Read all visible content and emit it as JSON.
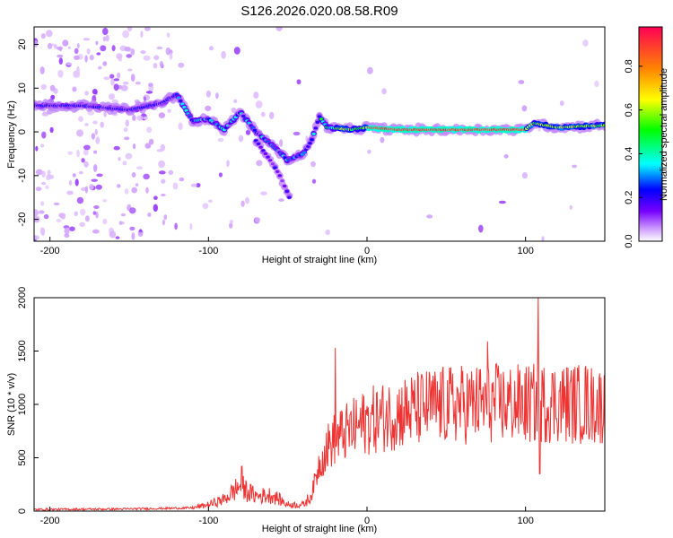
{
  "title": "S126.2026.020.08.58.R09",
  "colors": {
    "snr_line": "#ee3333",
    "axis": "#000000",
    "background": "#ffffff"
  },
  "chart_data": [
    {
      "type": "heatmap",
      "name": "spectrogram",
      "xlabel": "Height of straight line (km)",
      "ylabel": "Frequency (Hz)",
      "xlim": [
        -210,
        150
      ],
      "ylim": [
        -25,
        24
      ],
      "xticks": [
        -200,
        -100,
        0,
        100
      ],
      "yticks": [
        -20,
        -10,
        0,
        10,
        20
      ],
      "colorbar": {
        "label": "Normalized spectral amplitude",
        "range": [
          0,
          0.98
        ],
        "ticks": [
          0.0,
          0.2,
          0.4,
          0.6,
          0.8
        ],
        "colormap": [
          "#ffffff",
          "#cc99ff",
          "#7700ff",
          "#0000ff",
          "#00ffff",
          "#00ff00",
          "#ffff00",
          "#ff8800",
          "#ff0055"
        ]
      },
      "ridge": [
        [
          -210,
          6.0
        ],
        [
          -180,
          6.0
        ],
        [
          -150,
          5.0
        ],
        [
          -130,
          6.5
        ],
        [
          -120,
          8.5
        ],
        [
          -110,
          2.5
        ],
        [
          -100,
          3.0
        ],
        [
          -90,
          0.5
        ],
        [
          -80,
          4.5
        ],
        [
          -70,
          0.0
        ],
        [
          -60,
          -3.0
        ],
        [
          -50,
          -6.5
        ],
        [
          -40,
          -5.0
        ],
        [
          -35,
          -2.0
        ],
        [
          -30,
          3.5
        ],
        [
          -25,
          1.0
        ],
        [
          -10,
          0.5
        ],
        [
          0,
          1.0
        ],
        [
          20,
          0.5
        ],
        [
          50,
          0.5
        ],
        [
          100,
          0.5
        ],
        [
          105,
          2.0
        ],
        [
          120,
          1.0
        ],
        [
          150,
          1.5
        ]
      ],
      "branch": [
        [
          -70,
          -2.0
        ],
        [
          -60,
          -7.0
        ],
        [
          -55,
          -10.0
        ],
        [
          -50,
          -14.0
        ],
        [
          -48,
          -16.0
        ]
      ]
    },
    {
      "type": "line",
      "name": "snr",
      "xlabel": "Height of straight line (km)",
      "ylabel": "SNR (10 * v/v)",
      "xlim": [
        -210,
        150
      ],
      "ylim": [
        0,
        2000
      ],
      "xticks": [
        -200,
        -100,
        0,
        100
      ],
      "yticks": [
        0,
        500,
        1000,
        1500,
        2000
      ],
      "trend": [
        [
          -210,
          15
        ],
        [
          -150,
          20
        ],
        [
          -110,
          30
        ],
        [
          -100,
          60
        ],
        [
          -90,
          110
        ],
        [
          -80,
          240
        ],
        [
          -75,
          180
        ],
        [
          -70,
          140
        ],
        [
          -60,
          150
        ],
        [
          -50,
          60
        ],
        [
          -40,
          60
        ],
        [
          -35,
          150
        ],
        [
          -30,
          450
        ],
        [
          -25,
          600
        ],
        [
          -20,
          680
        ],
        [
          -10,
          760
        ],
        [
          0,
          840
        ],
        [
          10,
          880
        ],
        [
          20,
          920
        ],
        [
          40,
          980
        ],
        [
          60,
          1000
        ],
        [
          80,
          1010
        ],
        [
          100,
          1000
        ],
        [
          120,
          1020
        ],
        [
          150,
          990
        ]
      ],
      "spikes": [
        [
          -79,
          420
        ],
        [
          -20,
          1530
        ],
        [
          76,
          1590
        ],
        [
          108,
          2020
        ],
        [
          109,
          350
        ],
        [
          138,
          1360
        ],
        [
          150,
          660
        ]
      ]
    }
  ]
}
